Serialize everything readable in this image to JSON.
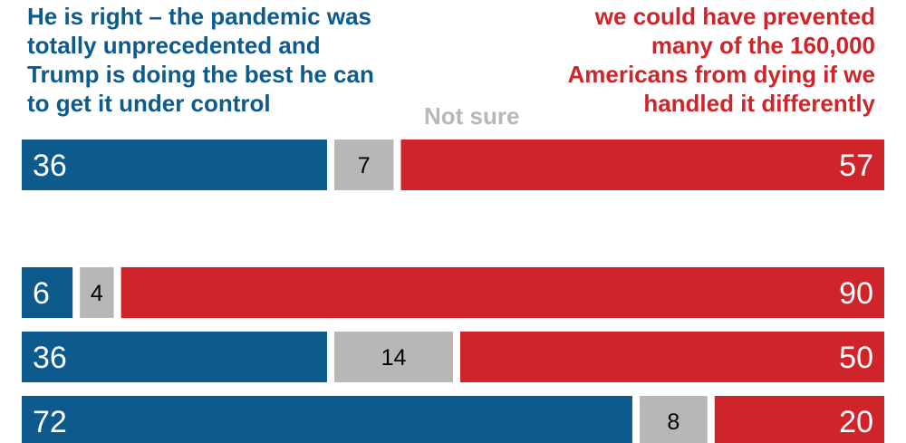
{
  "header": {
    "left_lines": [
      "He is right – the pandemic was",
      "totally unprecedented and",
      "Trump is doing the best he can",
      "to get it under control"
    ],
    "middle": "Not sure",
    "right_lines": [
      "we could have prevented",
      "many of the 160,000",
      "Americans from dying if we",
      "handled it differently"
    ]
  },
  "colors": {
    "left": "#0d5a8c",
    "middle": "#b7b7b7",
    "right": "#d0242b"
  },
  "chart_data": {
    "type": "bar",
    "orientation": "horizontal",
    "stacked": true,
    "scale_max": 100,
    "series": [
      {
        "name": "He is right – the pandemic was totally unprecedented and Trump is doing the best he can to get it under control",
        "values": [
          36,
          6,
          36,
          72
        ]
      },
      {
        "name": "Not sure",
        "values": [
          7,
          4,
          14,
          8
        ]
      },
      {
        "name": "we could have prevented many of the 160,000 Americans from dying if we handled it differently",
        "values": [
          57,
          90,
          50,
          20
        ]
      }
    ]
  }
}
